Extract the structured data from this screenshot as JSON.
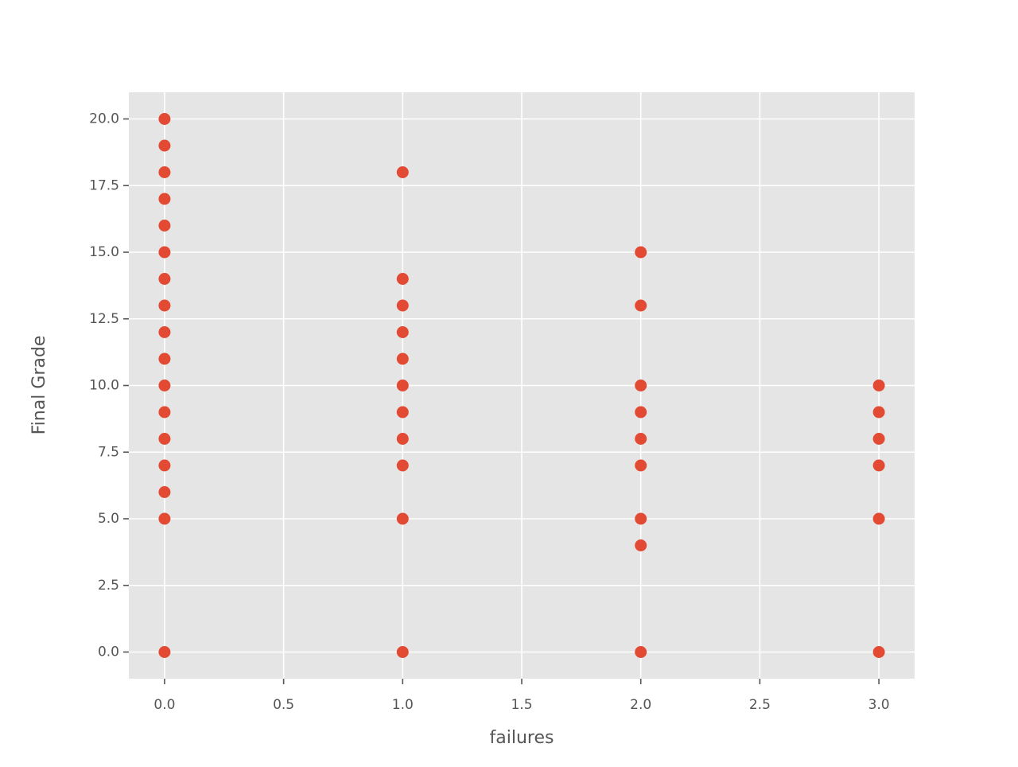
{
  "chart_data": {
    "type": "scatter",
    "x_label": "failures",
    "y_label": "Final Grade",
    "x": [
      0,
      0,
      0,
      0,
      0,
      0,
      0,
      0,
      0,
      0,
      0,
      0,
      0,
      0,
      0,
      0,
      0,
      1,
      1,
      1,
      1,
      1,
      1,
      1,
      1,
      1,
      1,
      1,
      2,
      2,
      2,
      2,
      2,
      2,
      2,
      2,
      2,
      3,
      3,
      3,
      3,
      3,
      3
    ],
    "values": [
      0,
      5,
      6,
      7,
      8,
      9,
      10,
      11,
      12,
      13,
      14,
      15,
      16,
      17,
      18,
      19,
      20,
      0,
      5,
      7,
      8,
      9,
      10,
      11,
      12,
      13,
      14,
      18,
      0,
      4,
      5,
      7,
      8,
      9,
      10,
      13,
      15,
      0,
      5,
      7,
      8,
      9,
      10
    ],
    "color": "#e24a33",
    "xlim": [
      -0.15,
      3.15
    ],
    "xticks": [
      {
        "value": 0,
        "label": "0.0"
      },
      0.5,
      {
        "value": 1,
        "label": "1.0"
      },
      1.5,
      {
        "value": 2,
        "label": "2.0"
      },
      2.5,
      {
        "value": 3,
        "label": "3.0"
      }
    ],
    "ylim": [
      -1,
      21
    ],
    "yticks": [
      {
        "value": 0,
        "label": "0.0"
      },
      2.5,
      {
        "value": 5,
        "label": "5.0"
      },
      7.5,
      {
        "value": 10,
        "label": "10.0"
      },
      12.5,
      {
        "value": 15,
        "label": "15.0"
      },
      17.5,
      {
        "value": 20,
        "label": "20.0"
      }
    ],
    "grid": true
  }
}
